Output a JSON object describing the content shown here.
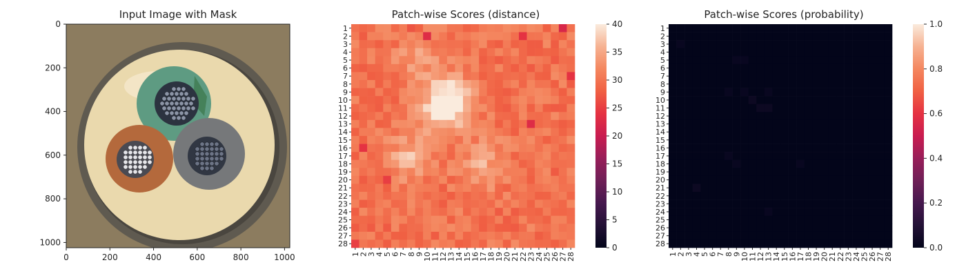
{
  "chart_data": [
    {
      "type": "image",
      "title": "Input Image with Mask",
      "xlim": [
        0,
        1024
      ],
      "ylim": [
        1024,
        0
      ],
      "xticks": [
        0,
        200,
        400,
        600,
        800,
        1000
      ],
      "yticks": [
        0,
        200,
        400,
        600,
        800,
        1000
      ],
      "colors": {
        "background": "#8c7c5f",
        "outer_ring": "#5f5a50",
        "sheath": "#ead9ad",
        "green_conductor": "#5e9b82",
        "orange_conductor": "#b4693c",
        "grey_conductor": "#76787a",
        "copper_green": "#2c3340",
        "copper_orange": "#e6e6ea",
        "copper_grey": "#313743"
      }
    },
    {
      "type": "heatmap",
      "title": "Patch-wise Scores (distance)",
      "rows": 28,
      "cols": 28,
      "row_labels": [
        "1",
        "2",
        "3",
        "4",
        "5",
        "6",
        "7",
        "8",
        "9",
        "10",
        "11",
        "12",
        "13",
        "14",
        "15",
        "16",
        "17",
        "18",
        "19",
        "20",
        "21",
        "22",
        "23",
        "24",
        "25",
        "26",
        "27",
        "28"
      ],
      "col_labels": [
        "1",
        "2",
        "3",
        "4",
        "5",
        "6",
        "7",
        "8",
        "9",
        "10",
        "11",
        "12",
        "13",
        "14",
        "15",
        "16",
        "17",
        "18",
        "19",
        "20",
        "21",
        "22",
        "23",
        "24",
        "25",
        "26",
        "27",
        "28"
      ],
      "colorbar": {
        "min": 0,
        "max": 40,
        "ticks": [
          "0",
          "5",
          "10",
          "15",
          "20",
          "25",
          "30",
          "35",
          "40"
        ]
      },
      "baseline": 30,
      "hot_spots": [
        {
          "row": 10,
          "col": 13,
          "value": 39
        },
        {
          "row": 11,
          "col": 12,
          "value": 37
        },
        {
          "row": 17,
          "col": 8,
          "value": 36
        },
        {
          "row": 18,
          "col": 17,
          "value": 35
        },
        {
          "row": 5,
          "col": 9,
          "value": 34
        }
      ],
      "low_spots": [
        {
          "row": 1,
          "col": 27,
          "value": 22
        },
        {
          "row": 2,
          "col": 10,
          "value": 23
        },
        {
          "row": 2,
          "col": 22,
          "value": 24
        },
        {
          "row": 13,
          "col": 23,
          "value": 23
        },
        {
          "row": 16,
          "col": 2,
          "value": 24
        },
        {
          "row": 20,
          "col": 5,
          "value": 25
        },
        {
          "row": 28,
          "col": 1,
          "value": 25
        },
        {
          "row": 7,
          "col": 28,
          "value": 24
        },
        {
          "row": 1,
          "col": 8,
          "value": 27
        }
      ]
    },
    {
      "type": "heatmap",
      "title": "Patch-wise Scores (probability)",
      "rows": 28,
      "cols": 28,
      "row_labels": [
        "1",
        "2",
        "3",
        "4",
        "5",
        "6",
        "7",
        "8",
        "9",
        "10",
        "11",
        "12",
        "13",
        "14",
        "15",
        "16",
        "17",
        "18",
        "19",
        "20",
        "21",
        "22",
        "23",
        "24",
        "25",
        "26",
        "27",
        "28"
      ],
      "col_labels": [
        "1",
        "2",
        "3",
        "4",
        "5",
        "6",
        "7",
        "8",
        "9",
        "10",
        "11",
        "12",
        "13",
        "14",
        "15",
        "16",
        "17",
        "18",
        "19",
        "20",
        "21",
        "22",
        "23",
        "24",
        "25",
        "26",
        "27",
        "28"
      ],
      "colorbar": {
        "min": 0.0,
        "max": 1.0,
        "ticks": [
          "0.0",
          "0.2",
          "0.4",
          "0.6",
          "0.8",
          "1.0"
        ]
      },
      "baseline": 0.0,
      "faint_cells": [
        {
          "row": 3,
          "col": 2,
          "value": 0.02
        },
        {
          "row": 5,
          "col": 9,
          "value": 0.02
        },
        {
          "row": 5,
          "col": 10,
          "value": 0.02
        },
        {
          "row": 9,
          "col": 8,
          "value": 0.02
        },
        {
          "row": 9,
          "col": 10,
          "value": 0.02
        },
        {
          "row": 9,
          "col": 13,
          "value": 0.02
        },
        {
          "row": 10,
          "col": 11,
          "value": 0.03
        },
        {
          "row": 11,
          "col": 12,
          "value": 0.03
        },
        {
          "row": 11,
          "col": 13,
          "value": 0.03
        },
        {
          "row": 17,
          "col": 8,
          "value": 0.02
        },
        {
          "row": 18,
          "col": 9,
          "value": 0.02
        },
        {
          "row": 18,
          "col": 17,
          "value": 0.02
        },
        {
          "row": 21,
          "col": 4,
          "value": 0.03
        },
        {
          "row": 24,
          "col": 13,
          "value": 0.02
        }
      ]
    }
  ]
}
